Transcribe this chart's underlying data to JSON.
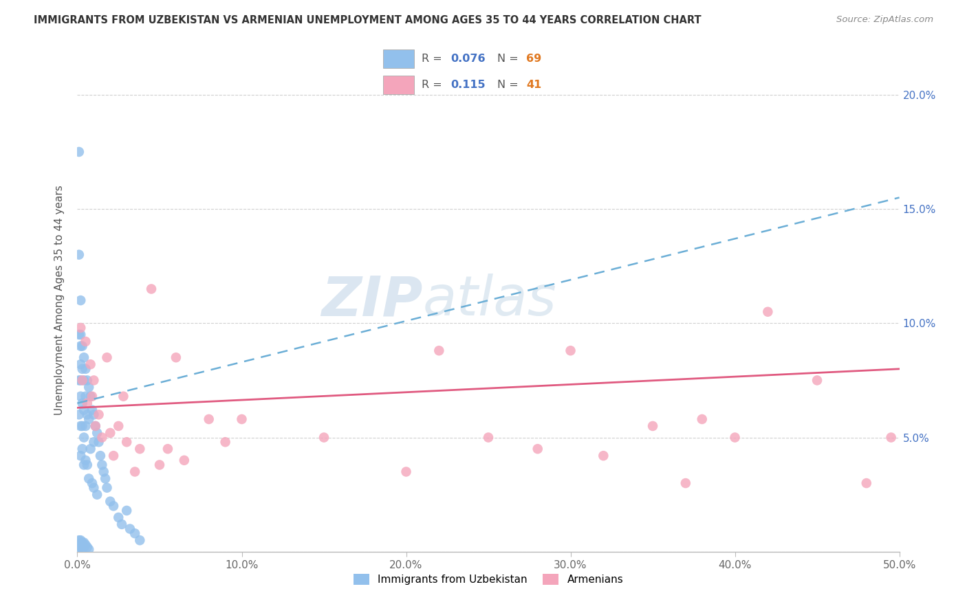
{
  "title": "IMMIGRANTS FROM UZBEKISTAN VS ARMENIAN UNEMPLOYMENT AMONG AGES 35 TO 44 YEARS CORRELATION CHART",
  "source": "Source: ZipAtlas.com",
  "ylabel": "Unemployment Among Ages 35 to 44 years",
  "xlim": [
    0,
    0.5
  ],
  "ylim": [
    0,
    0.22
  ],
  "xticks": [
    0.0,
    0.1,
    0.2,
    0.3,
    0.4,
    0.5
  ],
  "xticklabels": [
    "0.0%",
    "10.0%",
    "20.0%",
    "30.0%",
    "40.0%",
    "50.0%"
  ],
  "yticks": [
    0.0,
    0.05,
    0.1,
    0.15,
    0.2
  ],
  "yticklabels": [
    "",
    "5.0%",
    "10.0%",
    "15.0%",
    "20.0%"
  ],
  "series1_label": "Immigrants from Uzbekistan",
  "series2_label": "Armenians",
  "blue_color": "#92C0EC",
  "pink_color": "#F4A5BB",
  "blue_line_color": "#6BAED6",
  "pink_line_color": "#E05A80",
  "watermark_zip": "ZIP",
  "watermark_atlas": "atlas",
  "blue_x": [
    0.001,
    0.001,
    0.001,
    0.001,
    0.001,
    0.002,
    0.002,
    0.002,
    0.002,
    0.002,
    0.002,
    0.002,
    0.002,
    0.003,
    0.003,
    0.003,
    0.003,
    0.003,
    0.004,
    0.004,
    0.004,
    0.004,
    0.004,
    0.005,
    0.005,
    0.005,
    0.005,
    0.006,
    0.006,
    0.006,
    0.007,
    0.007,
    0.007,
    0.008,
    0.008,
    0.009,
    0.009,
    0.01,
    0.01,
    0.01,
    0.011,
    0.012,
    0.012,
    0.013,
    0.014,
    0.015,
    0.016,
    0.017,
    0.018,
    0.02,
    0.022,
    0.025,
    0.027,
    0.03,
    0.032,
    0.035,
    0.038,
    0.001,
    0.001,
    0.001,
    0.002,
    0.002,
    0.003,
    0.003,
    0.004,
    0.004,
    0.005,
    0.006,
    0.007
  ],
  "blue_y": [
    0.175,
    0.13,
    0.095,
    0.075,
    0.06,
    0.11,
    0.095,
    0.09,
    0.082,
    0.075,
    0.068,
    0.055,
    0.042,
    0.09,
    0.08,
    0.065,
    0.055,
    0.045,
    0.085,
    0.075,
    0.062,
    0.05,
    0.038,
    0.08,
    0.068,
    0.055,
    0.04,
    0.075,
    0.06,
    0.038,
    0.072,
    0.058,
    0.032,
    0.068,
    0.045,
    0.062,
    0.03,
    0.06,
    0.048,
    0.028,
    0.055,
    0.052,
    0.025,
    0.048,
    0.042,
    0.038,
    0.035,
    0.032,
    0.028,
    0.022,
    0.02,
    0.015,
    0.012,
    0.018,
    0.01,
    0.008,
    0.005,
    0.005,
    0.003,
    0.001,
    0.005,
    0.002,
    0.004,
    0.001,
    0.004,
    0.002,
    0.003,
    0.002,
    0.001
  ],
  "pink_x": [
    0.002,
    0.003,
    0.005,
    0.006,
    0.008,
    0.009,
    0.01,
    0.011,
    0.013,
    0.015,
    0.018,
    0.02,
    0.022,
    0.025,
    0.028,
    0.03,
    0.035,
    0.038,
    0.045,
    0.05,
    0.055,
    0.06,
    0.065,
    0.08,
    0.09,
    0.1,
    0.15,
    0.2,
    0.22,
    0.25,
    0.28,
    0.3,
    0.32,
    0.35,
    0.37,
    0.38,
    0.4,
    0.42,
    0.45,
    0.48,
    0.495
  ],
  "pink_y": [
    0.098,
    0.075,
    0.092,
    0.065,
    0.082,
    0.068,
    0.075,
    0.055,
    0.06,
    0.05,
    0.085,
    0.052,
    0.042,
    0.055,
    0.068,
    0.048,
    0.035,
    0.045,
    0.115,
    0.038,
    0.045,
    0.085,
    0.04,
    0.058,
    0.048,
    0.058,
    0.05,
    0.035,
    0.088,
    0.05,
    0.045,
    0.088,
    0.042,
    0.055,
    0.03,
    0.058,
    0.05,
    0.105,
    0.075,
    0.03,
    0.05
  ],
  "blue_trend_start_y": 0.065,
  "blue_trend_end_y": 0.155,
  "pink_trend_start_y": 0.063,
  "pink_trend_end_y": 0.08
}
